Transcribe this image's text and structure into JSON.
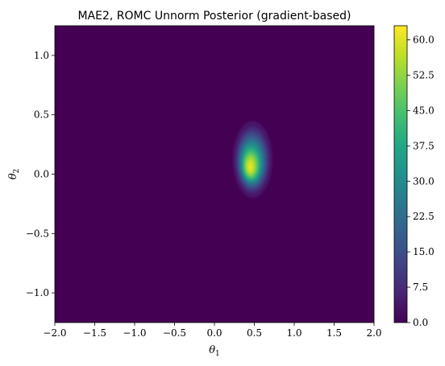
{
  "chart_data": {
    "type": "contour",
    "title": "MAE2, ROMC Unnorm Posterior (gradient-based)",
    "xlabel": "θ",
    "xlabel_sub": "1",
    "ylabel": "θ",
    "ylabel_sub": "2",
    "xlim": [
      -2.0,
      2.0
    ],
    "ylim": [
      -1.25,
      1.25
    ],
    "x_ticks": [
      "−2.0",
      "−1.5",
      "−1.0",
      "−0.5",
      "0.0",
      "0.5",
      "1.0",
      "1.5",
      "2.0"
    ],
    "x_tick_values": [
      -2.0,
      -1.5,
      -1.0,
      -0.5,
      0.0,
      0.5,
      1.0,
      1.5,
      2.0
    ],
    "y_ticks": [
      "−1.0",
      "−0.5",
      "0.0",
      "0.5",
      "1.0"
    ],
    "y_tick_values": [
      -1.0,
      -0.5,
      0.0,
      0.5,
      1.0
    ],
    "colorbar": {
      "colormap": "viridis",
      "range": [
        0.0,
        63.0
      ],
      "ticks": [
        "0.0",
        "7.5",
        "15.0",
        "22.5",
        "30.0",
        "37.5",
        "45.0",
        "52.5",
        "60.0"
      ],
      "tick_values": [
        0.0,
        7.5,
        15.0,
        22.5,
        30.0,
        37.5,
        45.0,
        52.5,
        60.0
      ]
    },
    "density": {
      "peak_value": 63.0,
      "peak_theta1": 0.45,
      "peak_theta2": 0.06,
      "spread_theta1": 0.11,
      "spread_theta2": 0.15,
      "support_theta1": [
        0.15,
        0.85
      ],
      "support_theta2": [
        -0.4,
        0.58
      ]
    },
    "background_color": "#440154",
    "grid": false
  }
}
